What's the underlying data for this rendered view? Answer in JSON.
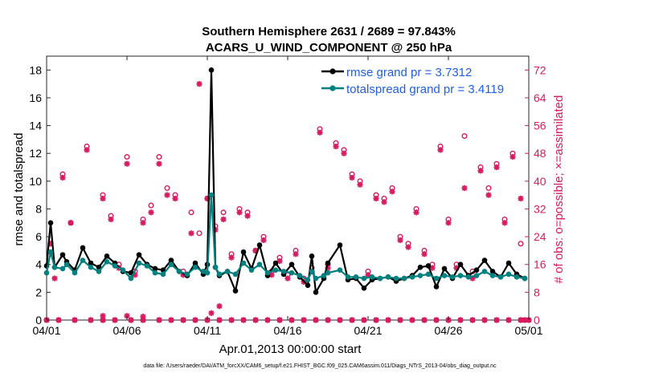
{
  "chart_data": {
    "type": "line",
    "title": [
      "Southern Hemisphere 2631 / 2689 = 97.843%",
      "ACARS_U_WIND_COMPONENT @ 250 hPa"
    ],
    "xlabel": "Apr.01,2013 00:00:00 start",
    "ylabel": "rmse and totalspread",
    "ylabel_right": "# of obs: o=possible; ×=assimilated",
    "xlim": [
      0,
      30
    ],
    "ylim": [
      0,
      19
    ],
    "ylim_right": [
      0,
      76
    ],
    "x_ticks": [
      0,
      5,
      10,
      15,
      20,
      25,
      30
    ],
    "x_tick_labels": [
      "04/01",
      "04/06",
      "04/11",
      "04/16",
      "04/21",
      "04/26",
      "05/01"
    ],
    "y_ticks": [
      0,
      2,
      4,
      6,
      8,
      10,
      12,
      14,
      16,
      18
    ],
    "y_tick_labels_right": [
      "0",
      "8",
      "16",
      "24",
      "32",
      "40",
      "48",
      "56",
      "64",
      "72"
    ],
    "footer": "data file: /Users/raeder/DAI/ATM_forcXX/CAM6_setup/f.e21.FHIST_BGC.f09_025.CAM6assim.011/Diags_NTrS_2013-04/obs_diag_output.nc",
    "colors": {
      "rmse": "#000000",
      "spread": "#00807f",
      "obs": "#d81b60",
      "legend_text": "#1f5fe0"
    },
    "series": [
      {
        "name": "rmse grand pr = 3.7312",
        "x": [
          0,
          0.25,
          0.5,
          1.0,
          1.25,
          1.75,
          2.25,
          2.75,
          3.25,
          3.75,
          4.25,
          4.75,
          5.25,
          5.75,
          6.25,
          6.75,
          7.25,
          7.75,
          8.25,
          8.75,
          9.25,
          9.75,
          10.0,
          10.25,
          10.5,
          10.75,
          11.25,
          11.75,
          12.25,
          12.75,
          13.25,
          13.75,
          14.25,
          14.75,
          15.25,
          15.75,
          16.25,
          16.5,
          16.75,
          17.25,
          17.5,
          18.25,
          18.75,
          19.25,
          19.75,
          20.25,
          20.75,
          21.25,
          21.75,
          22.25,
          22.75,
          23.25,
          23.75,
          24.25,
          24.75,
          25.25,
          25.75,
          26.25,
          26.75,
          27.25,
          27.75,
          28.25,
          28.75,
          29.25,
          29.75
        ],
        "y": [
          3.9,
          7.0,
          3.8,
          4.7,
          4.2,
          3.6,
          5.2,
          4.1,
          3.8,
          4.6,
          4.1,
          3.5,
          3.4,
          4.7,
          4.0,
          3.7,
          3.6,
          4.3,
          3.5,
          3.2,
          4.1,
          3.3,
          4.0,
          18.0,
          3.8,
          3.2,
          3.5,
          2.1,
          4.9,
          3.7,
          5.4,
          3.2,
          4.1,
          3.3,
          4.0,
          3.1,
          2.5,
          4.6,
          2.0,
          3.0,
          4.1,
          5.4,
          2.9,
          3.0,
          2.3,
          2.9,
          3.0,
          3.1,
          2.8,
          3.0,
          3.2,
          3.8,
          3.9,
          2.4,
          3.7,
          3.0,
          4.0,
          3.2,
          3.6,
          4.3,
          3.5,
          3.1,
          4.1,
          3.3,
          3.0
        ]
      },
      {
        "name": "totalspread grand pr = 3.4119",
        "x": [
          0,
          0.25,
          0.5,
          1.0,
          1.25,
          1.75,
          2.25,
          2.75,
          3.25,
          3.75,
          4.25,
          4.75,
          5.25,
          5.75,
          6.25,
          6.75,
          7.25,
          7.75,
          8.25,
          8.75,
          9.25,
          9.75,
          10.0,
          10.25,
          10.5,
          10.75,
          11.25,
          11.75,
          12.25,
          12.75,
          13.25,
          13.75,
          14.25,
          14.75,
          15.25,
          15.75,
          16.25,
          16.5,
          16.75,
          17.25,
          17.5,
          18.25,
          18.75,
          19.25,
          19.75,
          20.25,
          20.75,
          21.25,
          21.75,
          22.25,
          22.75,
          23.25,
          23.75,
          24.25,
          24.75,
          25.25,
          25.75,
          26.25,
          26.75,
          27.25,
          27.75,
          28.25,
          28.75,
          29.25,
          29.75
        ],
        "y": [
          3.4,
          4.9,
          3.8,
          3.7,
          4.0,
          3.4,
          4.3,
          3.8,
          3.5,
          4.2,
          3.9,
          3.6,
          3.0,
          4.1,
          3.9,
          3.4,
          3.3,
          4.0,
          3.5,
          3.3,
          3.8,
          3.5,
          3.4,
          9.0,
          3.8,
          3.3,
          3.5,
          3.3,
          4.1,
          3.6,
          4.0,
          3.4,
          3.6,
          3.5,
          3.4,
          3.2,
          2.9,
          3.5,
          3.0,
          3.2,
          3.4,
          3.6,
          3.1,
          3.1,
          3.0,
          3.1,
          3.0,
          3.1,
          3.0,
          3.0,
          3.1,
          3.2,
          3.3,
          3.0,
          3.2,
          3.1,
          3.2,
          3.1,
          3.2,
          3.5,
          3.2,
          3.1,
          3.3,
          3.1,
          3.0
        ]
      }
    ],
    "obs_possible": {
      "x": [
        0.25,
        1.0,
        1.5,
        2.5,
        3.5,
        4.0,
        4.5,
        5.0,
        5.5,
        6.0,
        6.5,
        7.0,
        7.5,
        8.0,
        8.5,
        9.0,
        9.5,
        10.0,
        10.5,
        11.0,
        11.5,
        12.0,
        12.5,
        13.0,
        13.5,
        14.0,
        14.5,
        15.0,
        15.5,
        16.0,
        16.5,
        17.0,
        17.5,
        18.0,
        18.5,
        19.0,
        19.5,
        20.0,
        20.5,
        21.0,
        21.5,
        22.0,
        22.5,
        23.0,
        23.5,
        24.0,
        24.5,
        25.0,
        25.5,
        26.0,
        26.5,
        27.0,
        27.5,
        28.0,
        28.5,
        29.0,
        29.5
      ],
      "y": [
        22,
        42,
        28,
        50,
        36,
        30,
        16,
        47,
        14,
        29,
        33,
        47,
        38,
        36,
        14,
        31,
        25,
        35,
        27,
        31,
        19,
        32,
        31,
        20,
        24,
        14,
        18,
        13,
        20,
        12,
        15,
        55,
        16,
        51,
        49,
        42,
        40,
        14,
        36,
        35,
        38,
        24,
        22,
        32,
        20,
        16,
        50,
        29,
        16,
        53,
        14,
        44,
        38,
        45,
        29,
        48,
        22
      ]
    },
    "obs_assimilated": {
      "x": [
        0.25,
        0.5,
        1.0,
        1.5,
        2.5,
        3.5,
        4.0,
        4.5,
        5.0,
        5.5,
        6.0,
        6.5,
        7.0,
        7.5,
        8.0,
        8.5,
        9.0,
        9.5,
        10.0,
        10.5,
        11.0,
        11.5,
        12.0,
        12.5,
        13.0,
        13.5,
        14.0,
        14.5,
        15.0,
        15.5,
        16.0,
        16.5,
        17.0,
        17.5,
        18.0,
        18.5,
        19.0,
        19.5,
        20.0,
        20.5,
        21.0,
        21.5,
        22.0,
        22.5,
        23.0,
        23.5,
        24.0,
        24.5,
        25.0,
        25.5,
        26.0,
        26.5,
        27.0,
        27.5,
        28.0,
        28.5,
        29.0,
        29.5
      ],
      "y": [
        22,
        12,
        41,
        28,
        49,
        35,
        29,
        15,
        45,
        13,
        28,
        31,
        45,
        36,
        35,
        13,
        25,
        68,
        35,
        26,
        29,
        18,
        31,
        30,
        20,
        23,
        13,
        17,
        12,
        19,
        11,
        14,
        54,
        15,
        50,
        48,
        41,
        39,
        13,
        35,
        34,
        37,
        23,
        21,
        31,
        19,
        15,
        49,
        28,
        15,
        38,
        12,
        43,
        36,
        44,
        28,
        47,
        35
      ]
    },
    "obs_zero_x": [
      0,
      0.75,
      1.75,
      2.75,
      3.5,
      4.25,
      5.25,
      6.0,
      7.0,
      7.75,
      8.5,
      9.25,
      10.0,
      10.75,
      11.5,
      12.25,
      13.0,
      13.75,
      14.5,
      15.25,
      16.0,
      16.75,
      17.5,
      18.25,
      19.0,
      19.75,
      20.5,
      21.25,
      22.0,
      22.75,
      23.5,
      24.25,
      25.0,
      25.75,
      26.5,
      27.25,
      28.0,
      28.75,
      29.5,
      29.75,
      30.0
    ],
    "obs_low_assim": [
      {
        "x": 3.5,
        "y": 1.2
      },
      {
        "x": 5.0,
        "y": 1.2
      },
      {
        "x": 6.0,
        "y": 1.0
      },
      {
        "x": 10.25,
        "y": 2.0
      },
      {
        "x": 10.75,
        "y": 4.0
      }
    ]
  }
}
